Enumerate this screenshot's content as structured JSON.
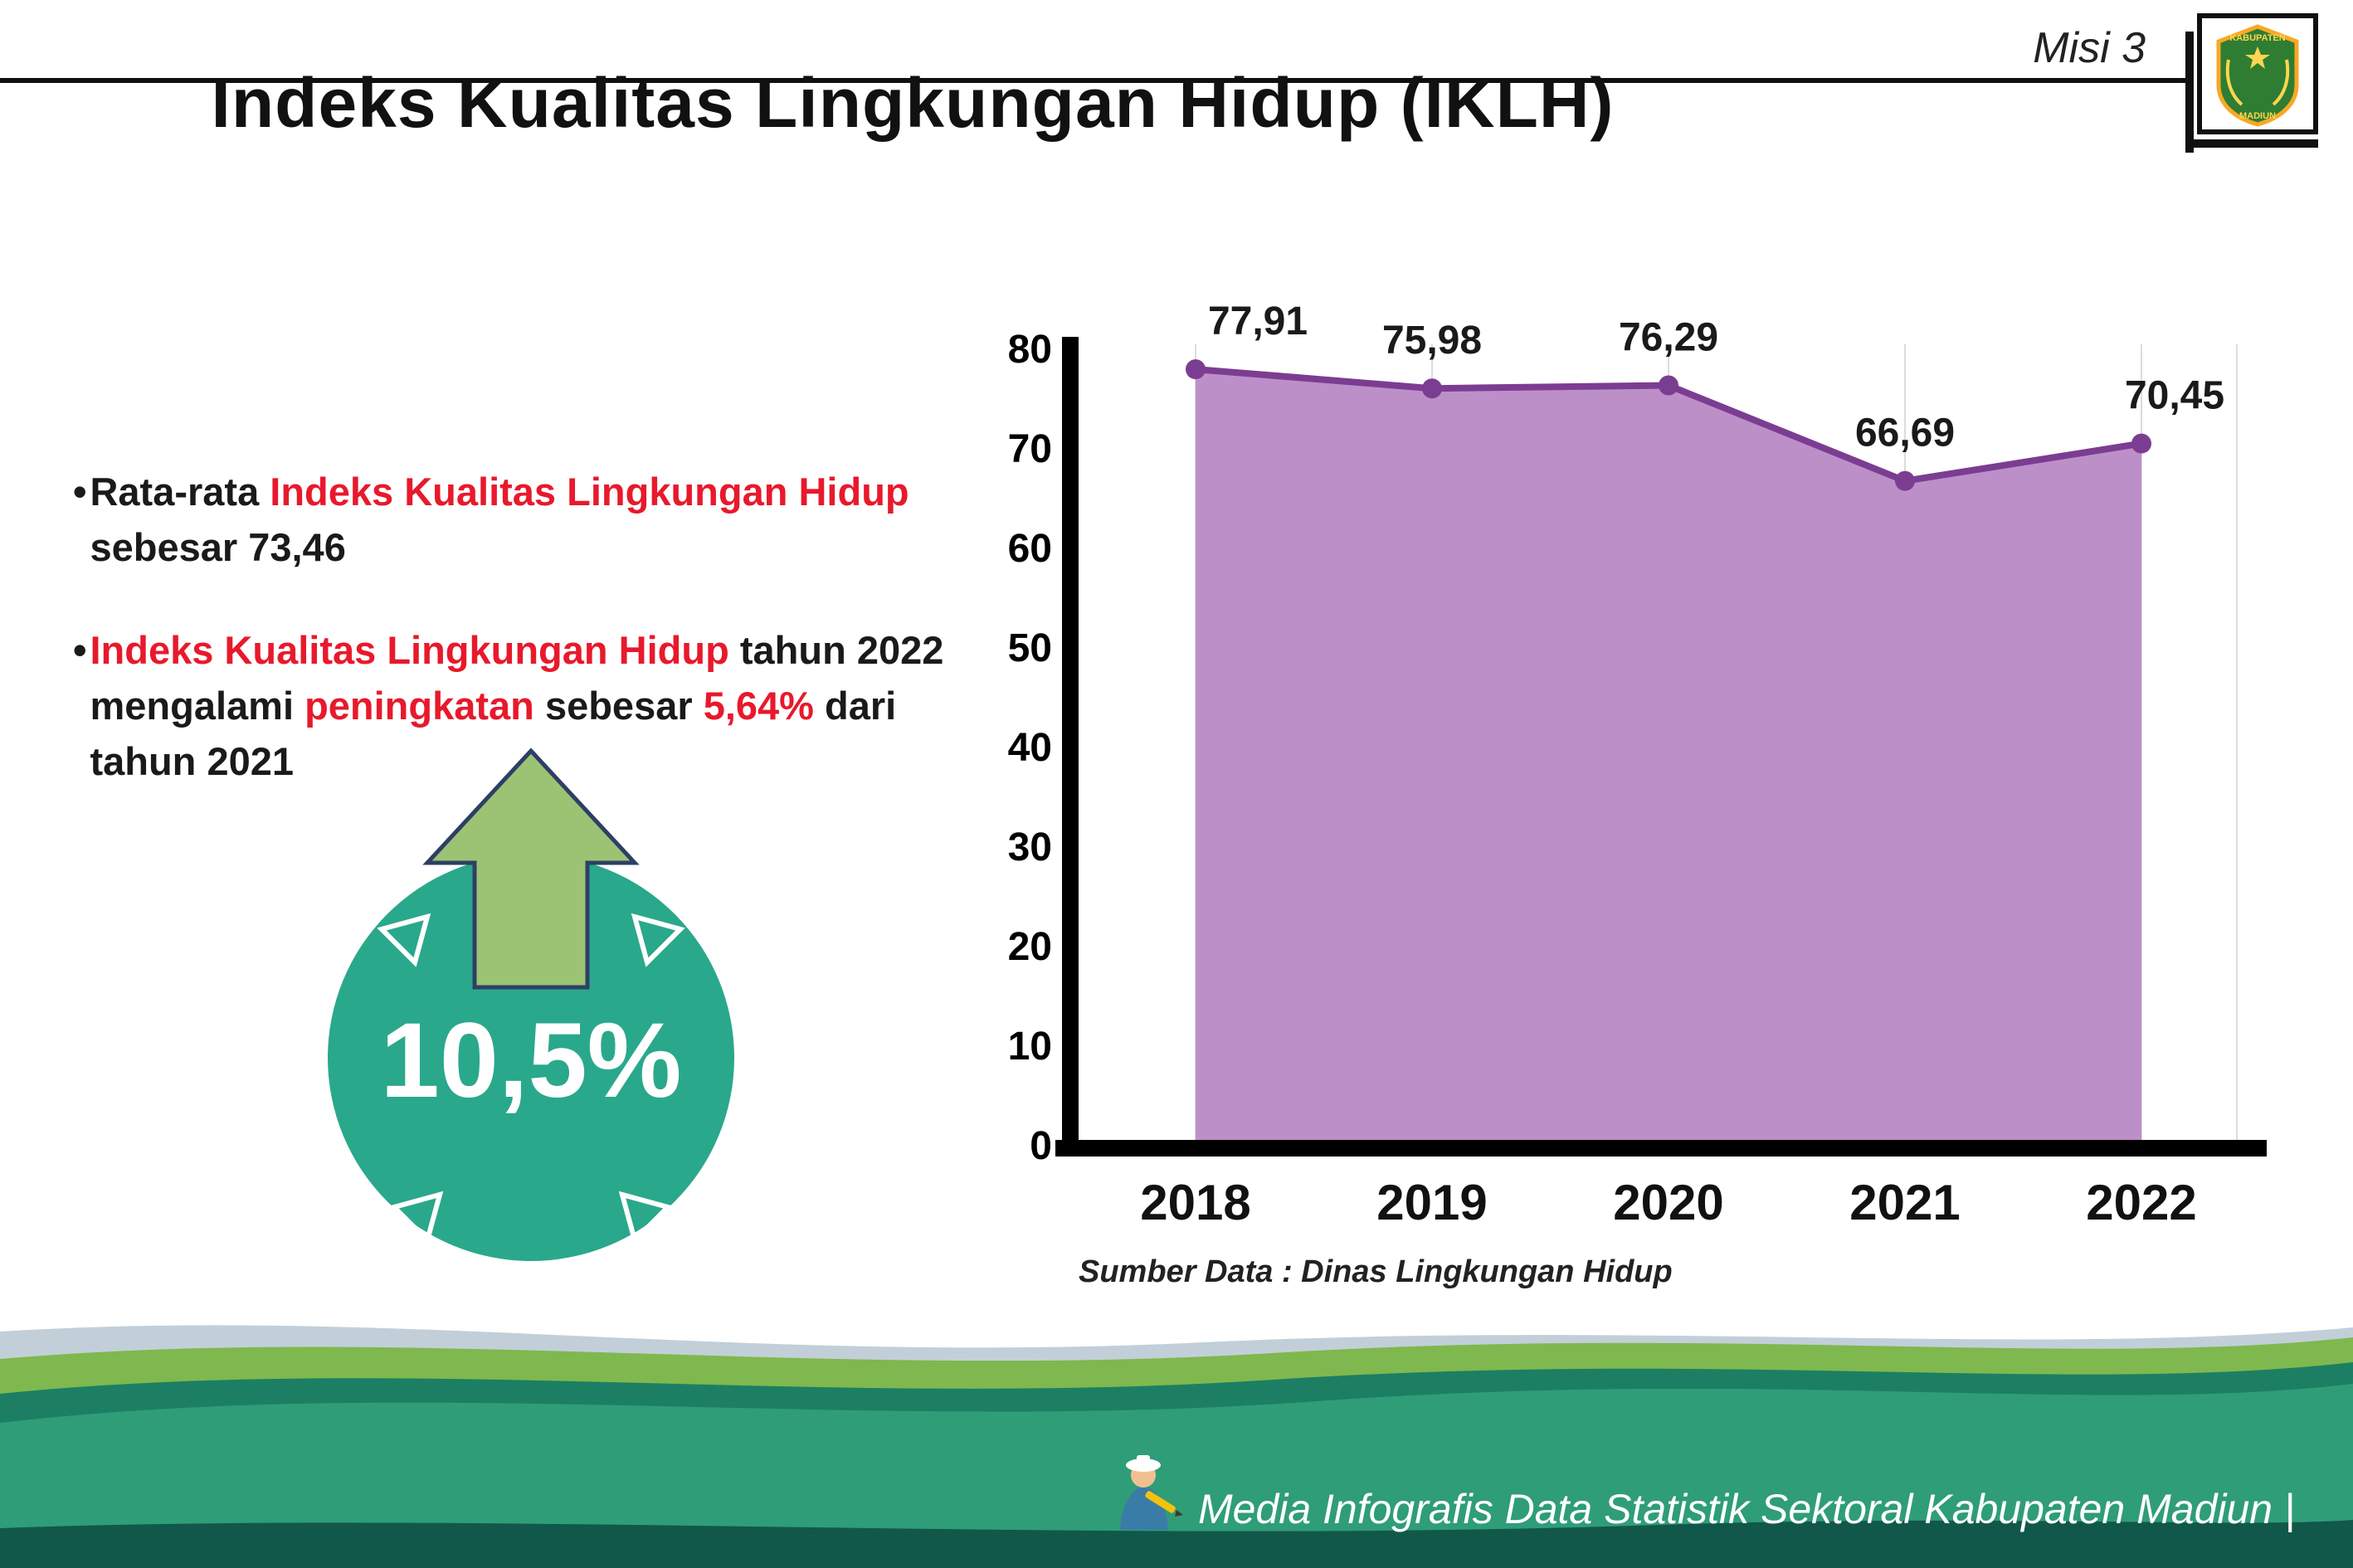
{
  "header": {
    "misi_label": "Misi 3",
    "title": "Indeks Kualitas Lingkungan Hidup (IKLH)"
  },
  "logo": {
    "name": "Kabupaten Madiun crest",
    "lines": [
      "KABUPATEN",
      "MADIUN"
    ]
  },
  "bullets": [
    {
      "segments": [
        {
          "text": "Rata-rata ",
          "style": "dark"
        },
        {
          "text": "Indeks Kualitas Lingkungan Hidup",
          "style": "red"
        },
        {
          "text": " sebesar 73,46",
          "style": "dark"
        }
      ]
    },
    {
      "segments": [
        {
          "text": "Indeks Kualitas Lingkungan Hidup",
          "style": "red"
        },
        {
          "text": " tahun 2022 mengalami ",
          "style": "dark"
        },
        {
          "text": "peningkatan",
          "style": "red"
        },
        {
          "text": " sebesar ",
          "style": "dark"
        },
        {
          "text": "5,64%",
          "style": "red"
        },
        {
          "text": " dari tahun 2021",
          "style": "dark"
        }
      ]
    }
  ],
  "badge": {
    "value": "10,5%",
    "icon": "up-arrow-icon"
  },
  "chart_data": {
    "type": "area",
    "title": "Indeks Kualitas Lingkungan Hidup (IKLH)",
    "categories": [
      "2018",
      "2019",
      "2020",
      "2021",
      "2022"
    ],
    "values": [
      77.91,
      75.98,
      76.29,
      66.69,
      70.45
    ],
    "value_labels": [
      "77,91",
      "75,98",
      "76,29",
      "66,69",
      "70,45"
    ],
    "ylim": [
      0,
      80
    ],
    "ytick_step": 10,
    "grid": "vertical-light",
    "legend": "none",
    "source": "Sumber Data : Dinas Lingkungan Hidup",
    "colors": {
      "area_fill": "#bd8fc9",
      "line": "#7b3d91",
      "point": "#7b3d91",
      "axis": "#000000",
      "label": "#1a1a1a"
    }
  },
  "footer": {
    "text": "Media Infografis Data Statistik Sektoral Kabupaten Madiun |"
  },
  "colors": {
    "accent_red": "#e8192c",
    "text_dark": "#1a1a1a",
    "badge_teal": "#2aa88b",
    "arrow_green": "#9cc373",
    "wave_pale": "#c2cfd8",
    "wave_green": "#7fb84e",
    "wave_darkteal": "#1c7f63",
    "wave_teal": "#2f9d78",
    "wave_dark": "#11584a"
  }
}
